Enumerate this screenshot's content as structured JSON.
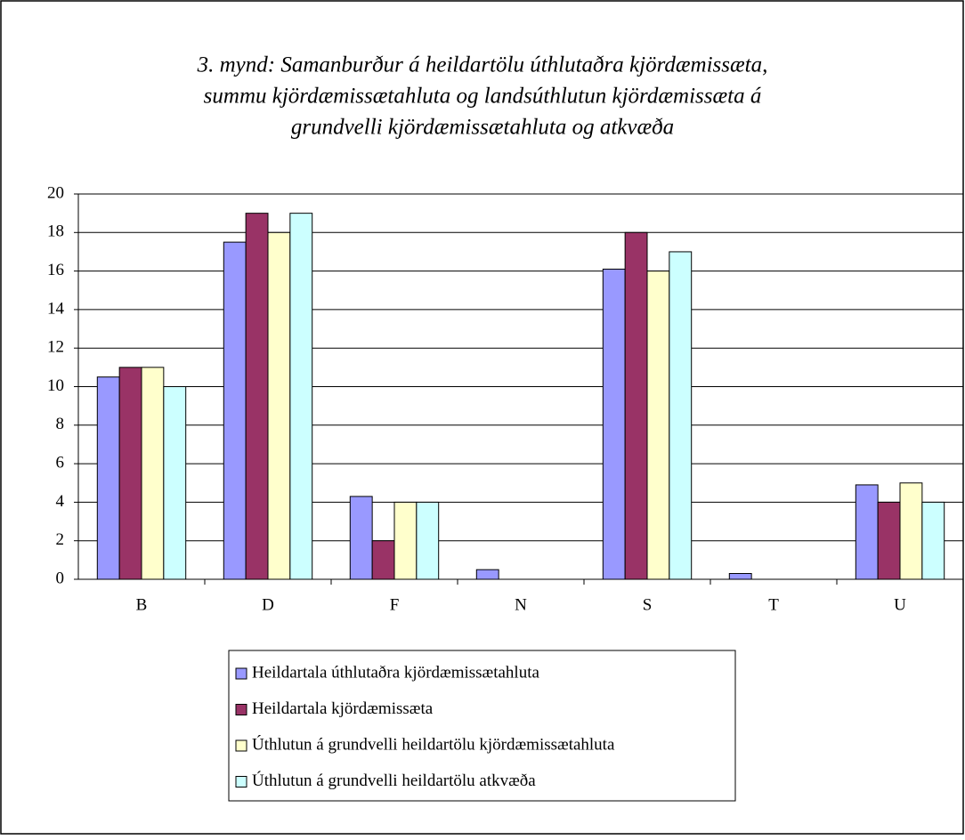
{
  "chart_data": {
    "type": "bar",
    "title": [
      "3. mynd: Samanburður á heildartölu úthlutaðra kjördæmissæta,",
      "summu kjördæmissætahluta og landsúthlutun kjördæmissæta á",
      "grundvelli kjördæmissætahluta og atkvæða"
    ],
    "categories": [
      "B",
      "D",
      "F",
      "N",
      "S",
      "T",
      "U"
    ],
    "series": [
      {
        "name": "Heildartala úthlutaðra kjördæmissætahluta",
        "color": "#9999ff",
        "values": [
          10.5,
          17.5,
          4.3,
          0.5,
          16.1,
          0.3,
          4.9
        ]
      },
      {
        "name": "Heildartala kjördæmissæta",
        "color": "#993366",
        "values": [
          11,
          19,
          2,
          0,
          18,
          0,
          4
        ]
      },
      {
        "name": "Úthlutun á grundvelli heildartölu kjördæmissætahluta",
        "color": "#ffffcc",
        "values": [
          11,
          18,
          4,
          0,
          16,
          0,
          5
        ]
      },
      {
        "name": "Úthlutun á grundvelli heildartölu atkvæða",
        "color": "#ccffff",
        "values": [
          10,
          19,
          4,
          0,
          17,
          0,
          4
        ]
      }
    ],
    "ylim": [
      0,
      20
    ],
    "yticks": [
      0,
      2,
      4,
      6,
      8,
      10,
      12,
      14,
      16,
      18,
      20
    ],
    "grid": true,
    "legend": "bottom"
  }
}
